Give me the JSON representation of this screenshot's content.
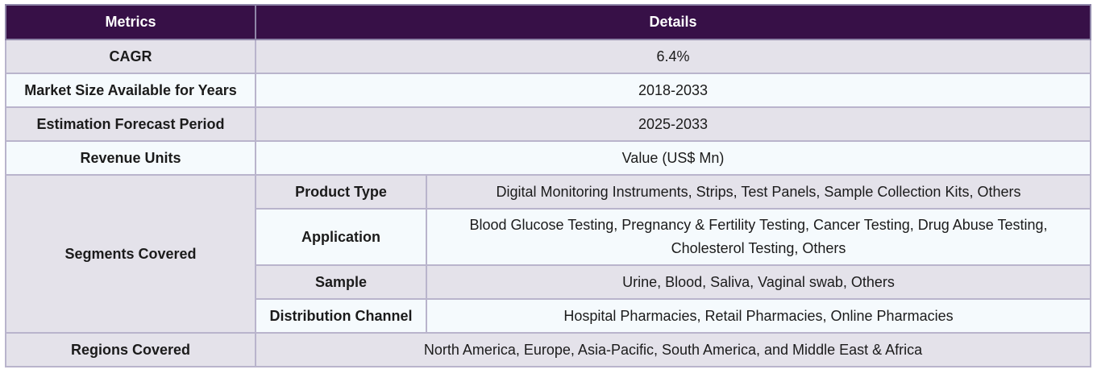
{
  "header": {
    "metrics": "Metrics",
    "details": "Details"
  },
  "rows": {
    "cagr": {
      "label": "CAGR",
      "value": "6.4%"
    },
    "market_size": {
      "label": "Market Size Available for Years",
      "value": "2018-2033"
    },
    "forecast": {
      "label": "Estimation Forecast Period",
      "value": "2025-2033"
    },
    "revenue": {
      "label": "Revenue Units",
      "value": "Value (US$ Mn)"
    },
    "segments": {
      "label": "Segments Covered",
      "items": [
        {
          "label": "Product Type",
          "value": "Digital Monitoring Instruments, Strips, Test Panels, Sample Collection Kits, Others"
        },
        {
          "label": "Application",
          "value": "Blood Glucose Testing, Pregnancy & Fertility Testing, Cancer Testing, Drug Abuse Testing, Cholesterol Testing, Others"
        },
        {
          "label": "Sample",
          "value": "Urine, Blood, Saliva, Vaginal swab, Others"
        },
        {
          "label": "Distribution Channel",
          "value": "Hospital Pharmacies, Retail Pharmacies, Online Pharmacies"
        }
      ]
    },
    "regions": {
      "label": "Regions Covered",
      "value": "North America, Europe, Asia-Pacific, South America, and Middle East & Africa"
    }
  }
}
